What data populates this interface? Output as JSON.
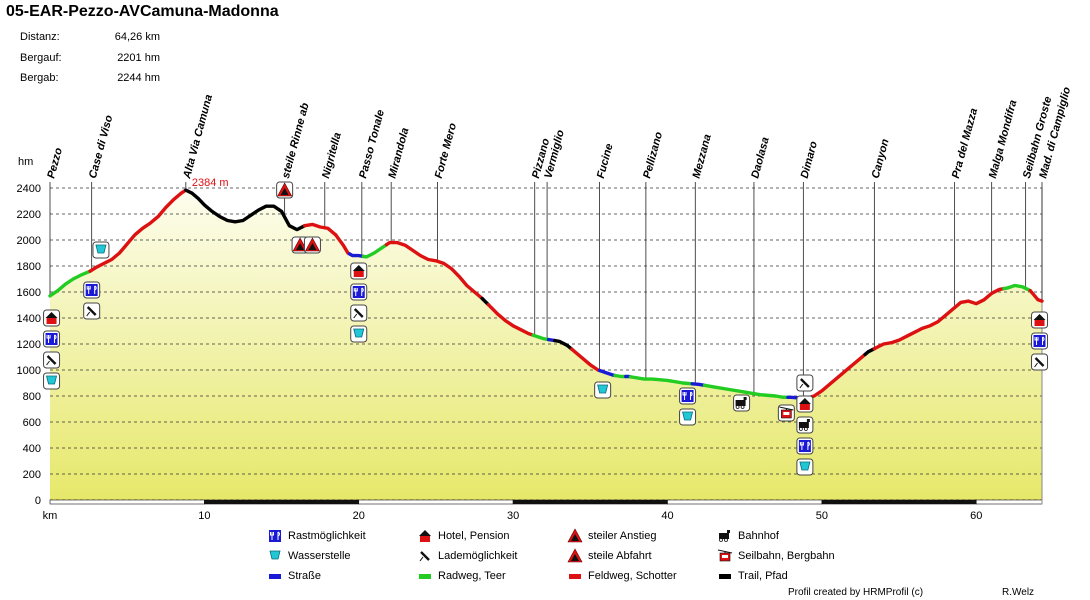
{
  "title": "05-EAR-Pezzo-AVCamuna-Madonna",
  "stats": [
    {
      "label": "Distanz:",
      "value": "64,26 km"
    },
    {
      "label": "Bergauf:",
      "value": "2201 hm"
    },
    {
      "label": "Bergab:",
      "value": "2244 hm"
    }
  ],
  "footer": {
    "credit": "Profil created by HRMProfil (c)",
    "author": "R.Welz"
  },
  "chart_data": {
    "type": "area",
    "title": "05-EAR-Pezzo-AVCamuna-Madonna",
    "xlabel": "km",
    "ylabel": "hm",
    "xlim": [
      0,
      64.26
    ],
    "ylim": [
      0,
      2400
    ],
    "x_ticks": [
      10,
      20,
      30,
      40,
      50,
      60
    ],
    "y_ticks": [
      0,
      200,
      400,
      600,
      800,
      1000,
      1200,
      1400,
      1600,
      1800,
      2000,
      2200,
      2400
    ],
    "grid": true,
    "peak_annotation": "2384 m",
    "peak": {
      "x": 8.8,
      "y": 2384
    },
    "profile": [
      [
        0,
        1570
      ],
      [
        0.5,
        1610
      ],
      [
        1,
        1660
      ],
      [
        1.5,
        1700
      ],
      [
        2,
        1730
      ],
      [
        2.6,
        1760
      ],
      [
        3,
        1790
      ],
      [
        3.5,
        1820
      ],
      [
        4,
        1850
      ],
      [
        4.5,
        1900
      ],
      [
        5,
        1970
      ],
      [
        5.5,
        2040
      ],
      [
        6,
        2090
      ],
      [
        6.5,
        2130
      ],
      [
        7,
        2180
      ],
      [
        7.5,
        2250
      ],
      [
        8,
        2310
      ],
      [
        8.5,
        2360
      ],
      [
        8.8,
        2384
      ],
      [
        9.2,
        2360
      ],
      [
        9.6,
        2320
      ],
      [
        10,
        2270
      ],
      [
        10.5,
        2220
      ],
      [
        11,
        2180
      ],
      [
        11.5,
        2150
      ],
      [
        12,
        2140
      ],
      [
        12.5,
        2150
      ],
      [
        13,
        2190
      ],
      [
        13.5,
        2230
      ],
      [
        14,
        2260
      ],
      [
        14.5,
        2260
      ],
      [
        15,
        2220
      ],
      [
        15.5,
        2110
      ],
      [
        16,
        2080
      ],
      [
        16.5,
        2110
      ],
      [
        17,
        2120
      ],
      [
        17.5,
        2100
      ],
      [
        18,
        2090
      ],
      [
        18.5,
        2040
      ],
      [
        19,
        1960
      ],
      [
        19.3,
        1900
      ],
      [
        19.6,
        1880
      ],
      [
        20,
        1880
      ],
      [
        20.5,
        1870
      ],
      [
        21,
        1900
      ],
      [
        21.5,
        1940
      ],
      [
        22,
        1980
      ],
      [
        22.5,
        1980
      ],
      [
        23,
        1960
      ],
      [
        23.5,
        1920
      ],
      [
        24,
        1880
      ],
      [
        24.5,
        1850
      ],
      [
        25,
        1840
      ],
      [
        25.5,
        1820
      ],
      [
        26,
        1780
      ],
      [
        26.5,
        1720
      ],
      [
        27,
        1650
      ],
      [
        27.5,
        1600
      ],
      [
        28,
        1550
      ],
      [
        28.5,
        1490
      ],
      [
        29,
        1430
      ],
      [
        29.5,
        1380
      ],
      [
        30,
        1340
      ],
      [
        30.5,
        1310
      ],
      [
        31,
        1280
      ],
      [
        31.5,
        1260
      ],
      [
        32,
        1240
      ],
      [
        32.5,
        1230
      ],
      [
        33,
        1220
      ],
      [
        33.5,
        1190
      ],
      [
        34,
        1140
      ],
      [
        34.5,
        1090
      ],
      [
        35,
        1040
      ],
      [
        35.5,
        1000
      ],
      [
        36,
        980
      ],
      [
        36.5,
        960
      ],
      [
        37,
        950
      ],
      [
        37.5,
        950
      ],
      [
        38,
        940
      ],
      [
        38.5,
        930
      ],
      [
        39,
        930
      ],
      [
        40,
        920
      ],
      [
        41,
        900
      ],
      [
        42,
        890
      ],
      [
        43,
        870
      ],
      [
        44,
        850
      ],
      [
        45,
        830
      ],
      [
        46,
        810
      ],
      [
        47,
        800
      ],
      [
        47.5,
        790
      ],
      [
        48,
        790
      ],
      [
        48.5,
        785
      ],
      [
        49,
        780
      ],
      [
        49.5,
        800
      ],
      [
        50,
        840
      ],
      [
        50.5,
        890
      ],
      [
        51,
        940
      ],
      [
        51.5,
        990
      ],
      [
        52,
        1040
      ],
      [
        52.5,
        1090
      ],
      [
        53,
        1140
      ],
      [
        53.5,
        1170
      ],
      [
        54,
        1200
      ],
      [
        54.5,
        1210
      ],
      [
        55,
        1230
      ],
      [
        55.5,
        1260
      ],
      [
        56,
        1290
      ],
      [
        56.5,
        1320
      ],
      [
        57,
        1340
      ],
      [
        57.5,
        1370
      ],
      [
        58,
        1420
      ],
      [
        58.5,
        1470
      ],
      [
        59,
        1520
      ],
      [
        59.5,
        1530
      ],
      [
        60,
        1510
      ],
      [
        60.5,
        1540
      ],
      [
        61,
        1590
      ],
      [
        61.5,
        1620
      ],
      [
        62,
        1630
      ],
      [
        62.5,
        1650
      ],
      [
        63,
        1640
      ],
      [
        63.5,
        1610
      ],
      [
        64,
        1540
      ],
      [
        64.26,
        1530
      ]
    ],
    "surface_segments": [
      {
        "from": 0,
        "to": 2.6,
        "type": "Radweg, Teer"
      },
      {
        "from": 2.6,
        "to": 8.8,
        "type": "Feldweg, Schotter"
      },
      {
        "from": 8.8,
        "to": 16.5,
        "type": "Trail, Pfad"
      },
      {
        "from": 16.5,
        "to": 18.5,
        "type": "Feldweg, Schotter"
      },
      {
        "from": 18.5,
        "to": 19.4,
        "type": "Feldweg, Schotter"
      },
      {
        "from": 19.4,
        "to": 20.3,
        "type": "Straße"
      },
      {
        "from": 20.3,
        "to": 21.8,
        "type": "Radweg, Teer"
      },
      {
        "from": 21.8,
        "to": 28,
        "type": "Feldweg, Schotter"
      },
      {
        "from": 28,
        "to": 28.4,
        "type": "Trail, Pfad"
      },
      {
        "from": 28.4,
        "to": 31.3,
        "type": "Feldweg, Schotter"
      },
      {
        "from": 31.3,
        "to": 32.3,
        "type": "Radweg, Teer"
      },
      {
        "from": 32.3,
        "to": 32.7,
        "type": "Straße"
      },
      {
        "from": 32.7,
        "to": 33.8,
        "type": "Trail, Pfad"
      },
      {
        "from": 33.8,
        "to": 35.6,
        "type": "Feldweg, Schotter"
      },
      {
        "from": 35.6,
        "to": 36.6,
        "type": "Straße"
      },
      {
        "from": 36.6,
        "to": 37.3,
        "type": "Radweg, Teer"
      },
      {
        "from": 37.3,
        "to": 37.6,
        "type": "Straße"
      },
      {
        "from": 37.6,
        "to": 41.6,
        "type": "Radweg, Teer"
      },
      {
        "from": 41.6,
        "to": 42.4,
        "type": "Straße"
      },
      {
        "from": 42.4,
        "to": 47.8,
        "type": "Radweg, Teer"
      },
      {
        "from": 47.8,
        "to": 49.3,
        "type": "Straße"
      },
      {
        "from": 49.3,
        "to": 52.8,
        "type": "Feldweg, Schotter"
      },
      {
        "from": 52.8,
        "to": 53.4,
        "type": "Trail, Pfad"
      },
      {
        "from": 53.4,
        "to": 61.8,
        "type": "Feldweg, Schotter"
      },
      {
        "from": 61.8,
        "to": 63.5,
        "type": "Radweg, Teer"
      },
      {
        "from": 63.5,
        "to": 64.26,
        "type": "Feldweg, Schotter"
      }
    ],
    "waypoints": [
      {
        "name": "Pezzo",
        "km": 0
      },
      {
        "name": "Case di Viso",
        "km": 2.7
      },
      {
        "name": "Alta Via Camuna",
        "km": 8.8
      },
      {
        "name": "steile Rinne ab",
        "km": 15.2
      },
      {
        "name": "Nigritella",
        "km": 17.8
      },
      {
        "name": "Passo Tonale",
        "km": 20.2
      },
      {
        "name": "Mirandola",
        "km": 22.1
      },
      {
        "name": "Forte Mero",
        "km": 25.1
      },
      {
        "name": "Pizzano",
        "km": 31.4
      },
      {
        "name": "Vermiglio",
        "km": 32.2
      },
      {
        "name": "Fucine",
        "km": 35.6
      },
      {
        "name": "Pellizano",
        "km": 38.6
      },
      {
        "name": "Mezzana",
        "km": 41.8
      },
      {
        "name": "Daolasa",
        "km": 45.6
      },
      {
        "name": "Dimaro",
        "km": 48.8
      },
      {
        "name": "Canyon",
        "km": 53.4
      },
      {
        "name": "Pra del Mazza",
        "km": 58.6
      },
      {
        "name": "Malga Mondifra",
        "km": 61
      },
      {
        "name": "Seilbahn Groste",
        "km": 63.2
      },
      {
        "name": "Mad. di Campiglio",
        "km": 64.26
      }
    ],
    "icon_markers": [
      {
        "km": 0.1,
        "icons": [
          "hotel",
          "food",
          "charging",
          "water"
        ]
      },
      {
        "km": 2.7,
        "icons": [
          "food",
          "charging"
        ]
      },
      {
        "km": 3.3,
        "icons": [
          "water"
        ]
      },
      {
        "km": 15.2,
        "icons": [
          "steep-ascent"
        ]
      },
      {
        "km": 16.2,
        "icons": [
          "steep-descent"
        ]
      },
      {
        "km": 17,
        "icons": [
          "steep-descent"
        ]
      },
      {
        "km": 20,
        "icons": [
          "hotel",
          "food",
          "charging",
          "water"
        ]
      },
      {
        "km": 35.8,
        "icons": [
          "water"
        ]
      },
      {
        "km": 41.3,
        "icons": [
          "food",
          "water"
        ]
      },
      {
        "km": 44.8,
        "icons": [
          "train"
        ]
      },
      {
        "km": 47.7,
        "icons": [
          "cablecar"
        ]
      },
      {
        "km": 48.9,
        "icons": [
          "charging",
          "hotel",
          "train",
          "food",
          "water"
        ]
      },
      {
        "km": 64.1,
        "icons": [
          "hotel",
          "food",
          "charging"
        ]
      }
    ],
    "legend": [
      {
        "key": "food",
        "label": "Rastmöglichkeit"
      },
      {
        "key": "water",
        "label": "Wasserstelle"
      },
      {
        "key": "road",
        "label": "Straße",
        "color": "#1a1ad6"
      },
      {
        "key": "hotel",
        "label": "Hotel, Pension"
      },
      {
        "key": "charging",
        "label": "Lademöglichkeit"
      },
      {
        "key": "bikepath",
        "label": "Radweg, Teer",
        "color": "#22cc22"
      },
      {
        "key": "steep-ascent",
        "label": "steiler Anstieg"
      },
      {
        "key": "steep-descent",
        "label": "steile Abfahrt"
      },
      {
        "key": "gravel",
        "label": "Feldweg, Schotter",
        "color": "#dd1111"
      },
      {
        "key": "train",
        "label": "Bahnhof"
      },
      {
        "key": "cablecar",
        "label": "Seilbahn, Bergbahn"
      },
      {
        "key": "trail",
        "label": "Trail, Pfad",
        "color": "#000000"
      }
    ],
    "surface_colors": {
      "Straße": "#1a1ad6",
      "Radweg, Teer": "#22cc22",
      "Feldweg, Schotter": "#dd1111",
      "Trail, Pfad": "#000000"
    }
  }
}
